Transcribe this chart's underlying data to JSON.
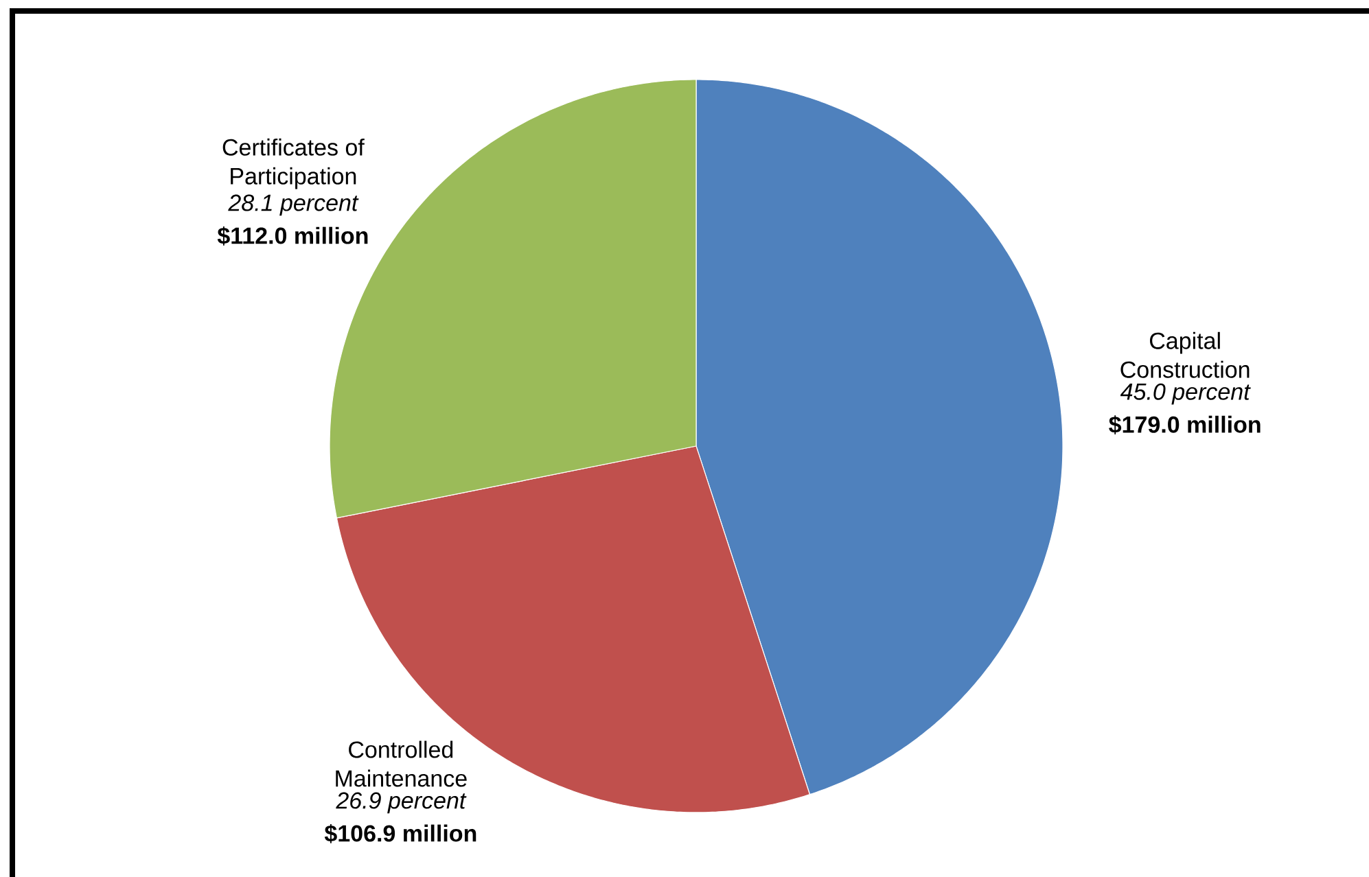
{
  "chart_data": {
    "type": "pie",
    "categories": [
      "Capital Construction",
      "Controlled Maintenance",
      "Certificates of Participation"
    ],
    "values": [
      179.0,
      106.9,
      112.0
    ],
    "colors": [
      "#4f81bd",
      "#c0504d",
      "#9bbb59"
    ],
    "value_labels": [
      "$179.0 million",
      "$106.9 million",
      "$112.0 million"
    ],
    "annotations": [
      {
        "text": "45.0 percent",
        "x": "Capital Construction"
      },
      {
        "text": "26.9 percent",
        "x": "Controlled Maintenance"
      },
      {
        "text": "28.1 percent",
        "x": "Certificates of Participation"
      }
    ]
  }
}
